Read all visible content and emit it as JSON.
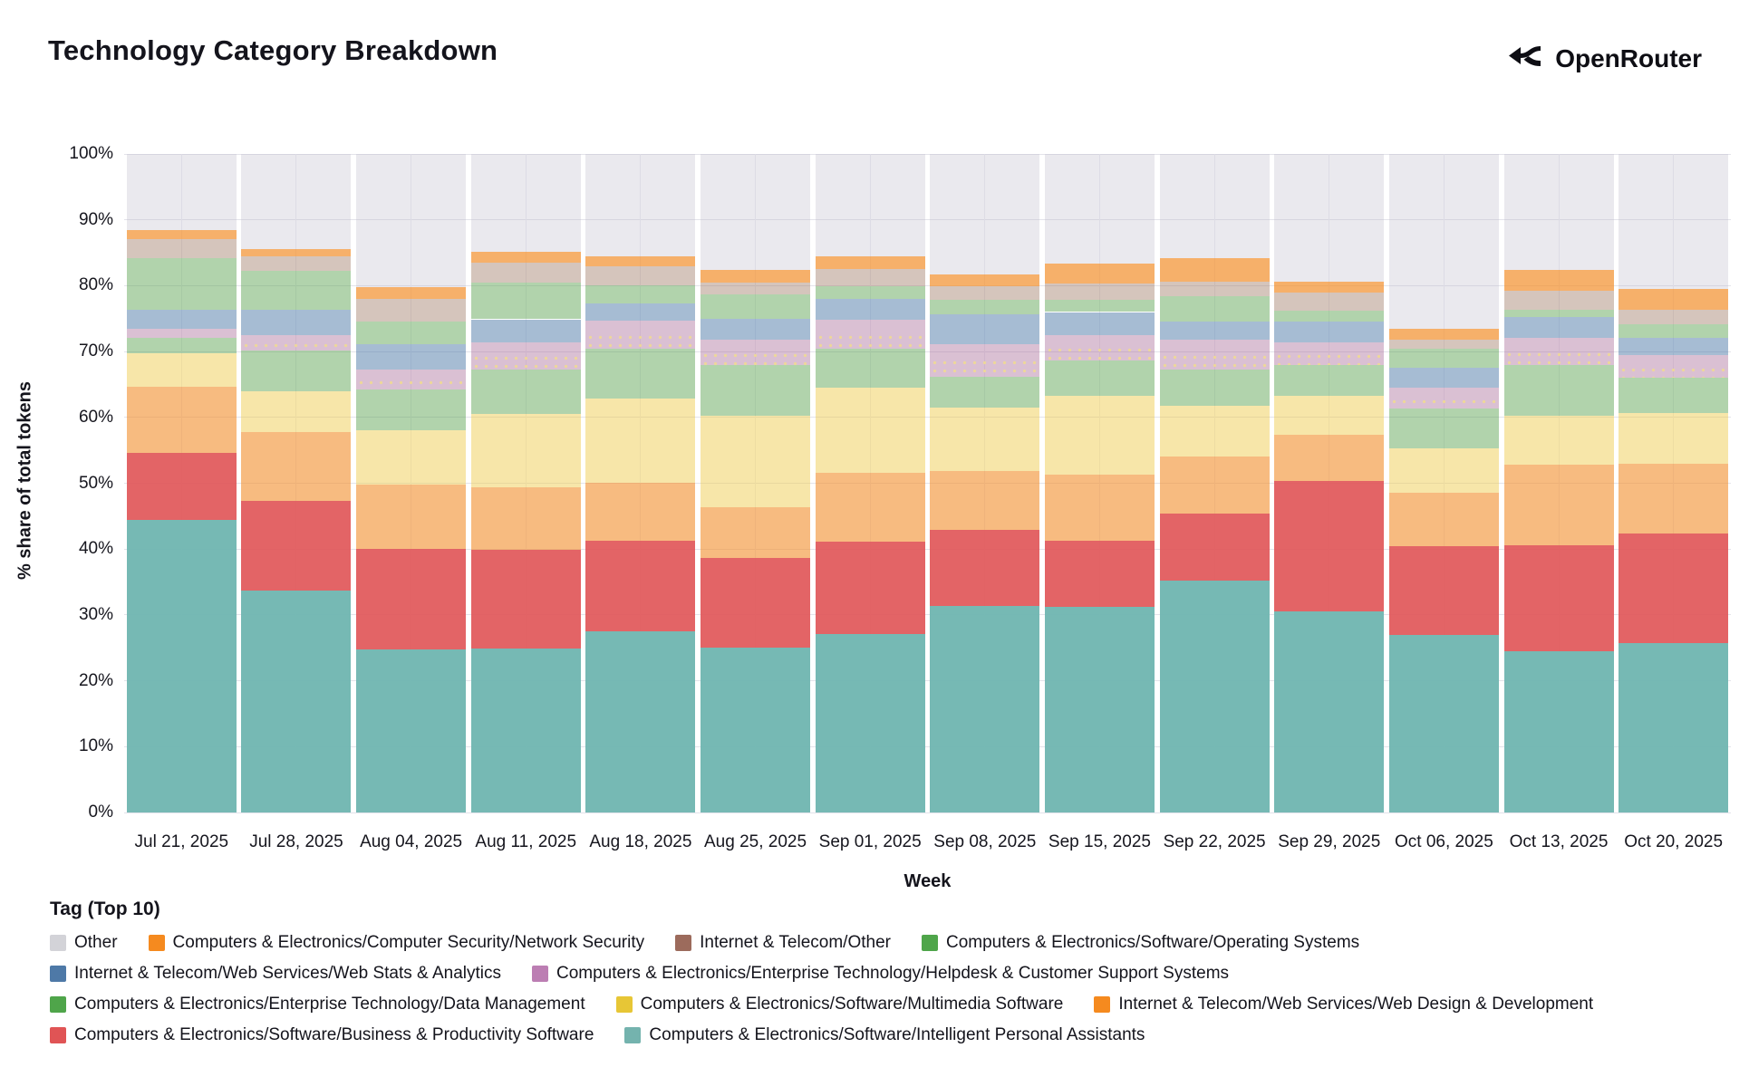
{
  "header": {
    "title": "Technology Category Breakdown",
    "brand": "OpenRouter"
  },
  "axes": {
    "xlabel": "Week",
    "ylabel": "% share of total tokens",
    "yticks": [
      "0%",
      "10%",
      "20%",
      "30%",
      "40%",
      "50%",
      "60%",
      "70%",
      "80%",
      "90%",
      "100%"
    ]
  },
  "legend": {
    "title": "Tag (Top 10)",
    "rows": [
      [
        "other",
        "netsec",
        "itother",
        "os"
      ],
      [
        "webstats",
        "helpdesk"
      ],
      [
        "datamgmt",
        "multimedia",
        "webdesign"
      ],
      [
        "bizprod",
        "ipa"
      ]
    ]
  },
  "chart_data": {
    "type": "bar",
    "stacked": true,
    "title": "Technology Category Breakdown",
    "xlabel": "Week",
    "ylabel": "% share of total tokens",
    "ylim": [
      0,
      100
    ],
    "grid": true,
    "legend_position": "bottom",
    "x": [
      "Jul 21, 2025",
      "Jul 28, 2025",
      "Aug 04, 2025",
      "Aug 11, 2025",
      "Aug 18, 2025",
      "Aug 25, 2025",
      "Sep 01, 2025",
      "Sep 08, 2025",
      "Sep 15, 2025",
      "Sep 22, 2025",
      "Sep 29, 2025",
      "Oct 06, 2025",
      "Oct 13, 2025",
      "Oct 20, 2025"
    ],
    "stack_order_bottom_to_top": [
      "ipa",
      "bizprod",
      "webdesign",
      "multimedia",
      "datamgmt",
      "helpdesk",
      "webstats",
      "os",
      "itother",
      "netsec",
      "other"
    ],
    "series": [
      {
        "key": "ipa",
        "name": "Computers & Electronics/Software/Intelligent Personal Assistants",
        "legend_color": "#74B3AE",
        "bar_color": "rgba(114,183,178,0.97)",
        "values": [
          44.5,
          33.7,
          24.8,
          24.9,
          27.5,
          25.0,
          27.1,
          31.3,
          31.2,
          35.2,
          30.5,
          27.0,
          24.5,
          25.7
        ]
      },
      {
        "key": "bizprod",
        "name": "Computers & Electronics/Software/Business & Productivity Software",
        "legend_color": "#E05455",
        "bar_color": "rgba(225,87,89,0.92)",
        "values": [
          10.1,
          13.6,
          15.2,
          15.0,
          13.8,
          13.6,
          14.0,
          11.6,
          10.1,
          10.2,
          19.8,
          13.4,
          16.1,
          16.7
        ]
      },
      {
        "key": "webdesign",
        "name": "Internet & Telecom/Web Services/Web Design & Development",
        "legend_color": "#F58A1F",
        "bar_color": "rgba(242,142,43,0.60)",
        "values": [
          10.1,
          10.5,
          9.8,
          9.5,
          8.8,
          7.8,
          10.5,
          8.9,
          10.0,
          8.6,
          7.1,
          8.1,
          12.2,
          10.6
        ]
      },
      {
        "key": "multimedia",
        "name": "Computers & Electronics/Software/Multimedia Software",
        "legend_color": "#E7C636",
        "bar_color": "rgba(237,201,72,0.47)",
        "values": [
          5.1,
          6.2,
          8.3,
          11.1,
          12.8,
          13.9,
          12.9,
          9.7,
          12.0,
          7.7,
          5.9,
          6.8,
          7.5,
          7.6
        ]
      },
      {
        "key": "datamgmt",
        "name": "Computers & Electronics/Enterprise Technology/Data Management",
        "legend_color": "#4FA54A",
        "bar_color": "rgba(89,161,79,0.47)",
        "values": [
          2.3,
          6.2,
          6.2,
          6.8,
          7.5,
          7.6,
          5.9,
          4.7,
          5.4,
          5.6,
          4.6,
          6.0,
          7.6,
          5.4
        ]
      },
      {
        "key": "helpdesk",
        "name": "Computers & Electronics/Enterprise Technology/Helpdesk & Customer Support Systems",
        "legend_color": "#BC7EB3",
        "bar_color": "rgba(176,122,161,0.47)",
        "pattern": "dots-lower",
        "values": [
          1.4,
          2.3,
          3.0,
          4.1,
          4.3,
          3.9,
          4.4,
          4.9,
          3.8,
          4.5,
          3.5,
          3.2,
          4.2,
          3.4
        ]
      },
      {
        "key": "webstats",
        "name": "Internet & Telecom/Web Services/Web Stats & Analytics",
        "legend_color": "#4E79A7",
        "bar_color": "rgba(78,121,167,0.50)",
        "values": [
          2.9,
          3.9,
          3.8,
          3.5,
          2.6,
          3.2,
          3.2,
          4.6,
          3.5,
          2.8,
          3.2,
          3.0,
          3.2,
          2.7
        ]
      },
      {
        "key": "os",
        "name": "Computers & Electronics/Software/Operating Systems",
        "legend_color": "#4FA54A",
        "bar_color": "rgba(89,161,79,0.47)",
        "values": [
          7.8,
          5.8,
          3.5,
          5.6,
          2.8,
          3.7,
          1.9,
          2.1,
          1.9,
          3.8,
          1.6,
          2.9,
          1.1,
          2.0
        ]
      },
      {
        "key": "itother",
        "name": "Internet & Telecom/Other",
        "legend_color": "#9C6B5C",
        "bar_color": "rgba(156,117,95,0.42)",
        "legend_pattern": "dots",
        "values": [
          2.9,
          2.3,
          3.4,
          3.0,
          2.9,
          1.8,
          2.7,
          2.1,
          2.5,
          2.2,
          2.8,
          1.4,
          2.8,
          2.3
        ]
      },
      {
        "key": "netsec",
        "name": "Computers & Electronics/Computer Security/Network Security",
        "legend_color": "#F58A1F",
        "bar_color": "rgba(242,142,43,0.70)",
        "values": [
          1.3,
          1.0,
          1.8,
          1.7,
          1.5,
          1.9,
          1.9,
          1.8,
          3.0,
          3.6,
          1.6,
          1.6,
          3.2,
          3.1
        ]
      },
      {
        "key": "other",
        "name": "Other",
        "legend_color": "#D3D3D8",
        "bar_color": "rgba(187,182,198,0.30)",
        "values": [
          11.6,
          14.5,
          20.2,
          14.8,
          15.5,
          17.6,
          15.5,
          18.3,
          16.6,
          15.8,
          19.4,
          26.6,
          17.6,
          20.5
        ]
      }
    ]
  }
}
